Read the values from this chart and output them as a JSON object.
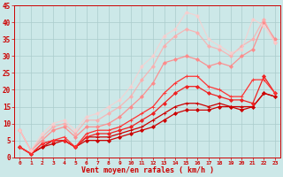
{
  "xlabel": "Vent moyen/en rafales ( km/h )",
  "background_color": "#cce8e8",
  "grid_color": "#aacccc",
  "xlim": [
    -0.5,
    23.5
  ],
  "ylim": [
    0,
    45
  ],
  "yticks": [
    0,
    5,
    10,
    15,
    20,
    25,
    30,
    35,
    40,
    45
  ],
  "xticks": [
    0,
    1,
    2,
    3,
    4,
    5,
    6,
    7,
    8,
    9,
    10,
    11,
    12,
    13,
    14,
    15,
    16,
    17,
    18,
    19,
    20,
    21,
    22,
    23
  ],
  "series": [
    {
      "x": [
        0,
        1,
        2,
        3,
        4,
        5,
        6,
        7,
        8,
        9,
        10,
        11,
        12,
        13,
        14,
        15,
        16,
        17,
        18,
        19,
        20,
        21,
        22,
        23
      ],
      "y": [
        3,
        1,
        3,
        4,
        5,
        3,
        5,
        5,
        5,
        6,
        7,
        8,
        9,
        11,
        13,
        14,
        14,
        14,
        15,
        15,
        14,
        15,
        19,
        18
      ],
      "color": "#cc0000",
      "alpha": 1.0,
      "linewidth": 0.9,
      "marker": "D",
      "markersize": 2.0
    },
    {
      "x": [
        0,
        1,
        2,
        3,
        4,
        5,
        6,
        7,
        8,
        9,
        10,
        11,
        12,
        13,
        14,
        15,
        16,
        17,
        18,
        19,
        20,
        21,
        22,
        23
      ],
      "y": [
        3,
        1,
        3,
        5,
        5,
        3,
        6,
        6,
        6,
        7,
        8,
        9,
        11,
        13,
        15,
        16,
        16,
        15,
        16,
        15,
        15,
        15,
        19,
        18
      ],
      "color": "#cc0000",
      "alpha": 1.0,
      "linewidth": 0.9,
      "marker": "+",
      "markersize": 3.5
    },
    {
      "x": [
        0,
        1,
        2,
        3,
        4,
        5,
        6,
        7,
        8,
        9,
        10,
        11,
        12,
        13,
        14,
        15,
        16,
        17,
        18,
        19,
        20,
        21,
        22,
        23
      ],
      "y": [
        3,
        1,
        4,
        5,
        5,
        3,
        6,
        7,
        7,
        8,
        9,
        11,
        13,
        16,
        19,
        21,
        21,
        19,
        18,
        17,
        17,
        16,
        24,
        19
      ],
      "color": "#ee2222",
      "alpha": 1.0,
      "linewidth": 0.9,
      "marker": "D",
      "markersize": 2.0
    },
    {
      "x": [
        0,
        1,
        2,
        3,
        4,
        5,
        6,
        7,
        8,
        9,
        10,
        11,
        12,
        13,
        14,
        15,
        16,
        17,
        18,
        19,
        20,
        21,
        22,
        23
      ],
      "y": [
        3,
        1,
        4,
        5,
        6,
        3,
        7,
        8,
        8,
        9,
        11,
        13,
        15,
        19,
        22,
        24,
        24,
        21,
        20,
        18,
        18,
        23,
        23,
        19
      ],
      "color": "#ff3333",
      "alpha": 1.0,
      "linewidth": 0.9,
      "marker": "+",
      "markersize": 3.5
    },
    {
      "x": [
        0,
        1,
        2,
        3,
        4,
        5,
        6,
        7,
        8,
        9,
        10,
        11,
        12,
        13,
        14,
        15,
        16,
        17,
        18,
        19,
        20,
        21,
        22,
        23
      ],
      "y": [
        8,
        2,
        5,
        8,
        9,
        6,
        9,
        9,
        10,
        12,
        15,
        18,
        22,
        28,
        29,
        30,
        29,
        27,
        28,
        27,
        30,
        32,
        40,
        35
      ],
      "color": "#ff8888",
      "alpha": 0.9,
      "linewidth": 0.9,
      "marker": "D",
      "markersize": 2.0
    },
    {
      "x": [
        0,
        1,
        2,
        3,
        4,
        5,
        6,
        7,
        8,
        9,
        10,
        11,
        12,
        13,
        14,
        15,
        16,
        17,
        18,
        19,
        20,
        21,
        22,
        23
      ],
      "y": [
        8,
        2,
        6,
        9,
        10,
        7,
        11,
        11,
        13,
        15,
        18,
        23,
        27,
        33,
        36,
        38,
        37,
        33,
        32,
        30,
        33,
        35,
        41,
        34
      ],
      "color": "#ffaaaa",
      "alpha": 0.8,
      "linewidth": 0.9,
      "marker": "D",
      "markersize": 2.0
    },
    {
      "x": [
        0,
        1,
        2,
        3,
        4,
        5,
        6,
        7,
        8,
        9,
        10,
        11,
        12,
        13,
        14,
        15,
        16,
        17,
        18,
        19,
        20,
        21,
        22,
        23
      ],
      "y": [
        8,
        2,
        7,
        10,
        11,
        8,
        12,
        13,
        15,
        17,
        21,
        27,
        30,
        36,
        38,
        43,
        42,
        35,
        33,
        31,
        32,
        41,
        39,
        34
      ],
      "color": "#ffcccc",
      "alpha": 0.7,
      "linewidth": 0.9,
      "marker": "D",
      "markersize": 2.0
    }
  ]
}
